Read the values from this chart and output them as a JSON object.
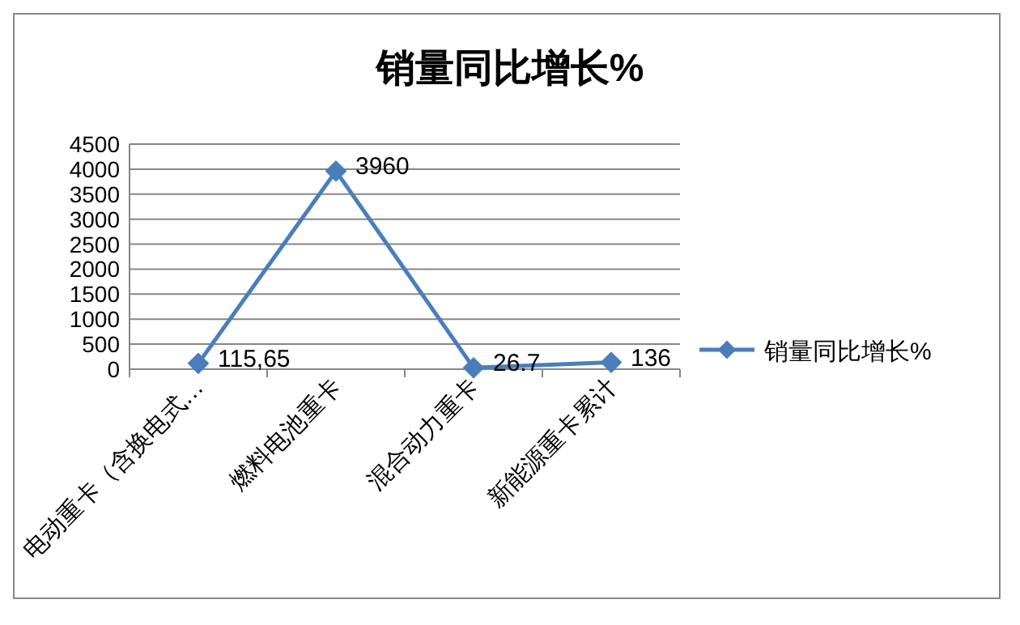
{
  "chart_data": {
    "type": "line",
    "title": "销量同比增长%",
    "categories": [
      "电动重卡（含换电式…",
      "燃料电池重卡",
      "混合动力重卡",
      "新能源重卡累计"
    ],
    "series": [
      {
        "name": "销量同比增长%",
        "color": "#4a7ebb",
        "values": [
          115.65,
          3960,
          26.7,
          136
        ],
        "value_labels": [
          "115,65",
          "3960",
          "26.7",
          "136"
        ]
      }
    ],
    "ylim": [
      0,
      4500
    ],
    "yticks": [
      0,
      500,
      1000,
      1500,
      2000,
      2500,
      3000,
      3500,
      4000,
      4500
    ],
    "grid": "y",
    "legend": "right",
    "marker": "diamond",
    "line_style": "solid"
  }
}
